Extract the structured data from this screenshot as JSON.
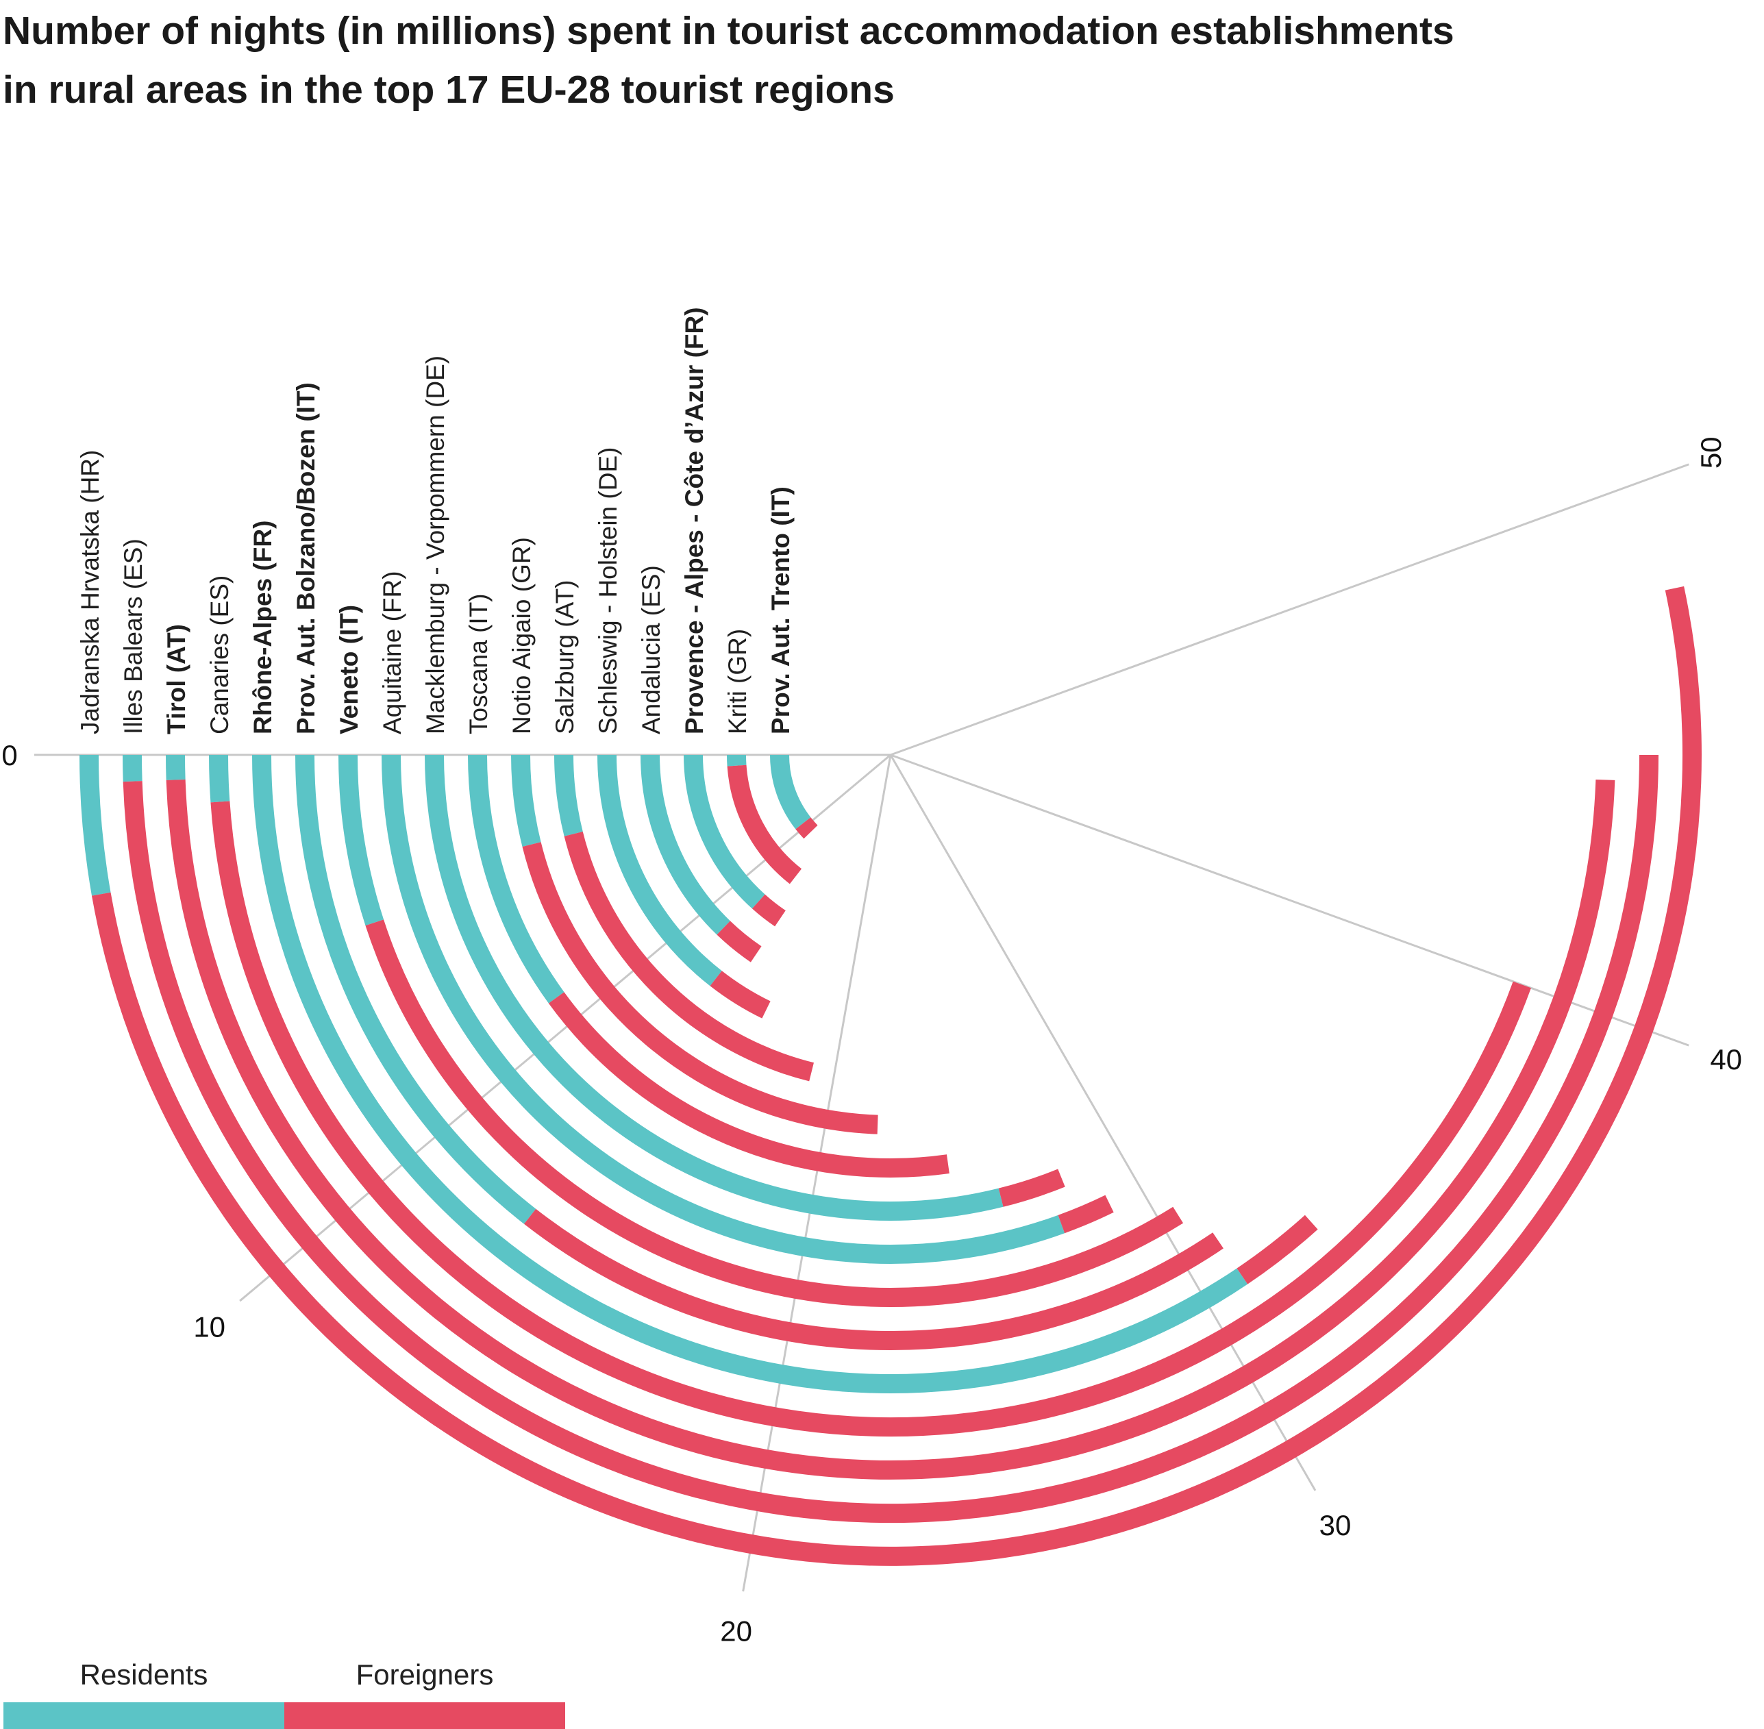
{
  "chart_data": {
    "type": "radial-bar",
    "title_lines": [
      "Number of nights (in millions) spent in tourist accommodation establishments",
      "in rural areas in the top 17 EU-28 tourist regions"
    ],
    "axis": {
      "min": 0,
      "max": 50,
      "ticks": [
        0,
        10,
        20,
        30,
        40,
        50
      ],
      "tick_labels": [
        "0",
        "10",
        "20",
        "30",
        "40",
        "50"
      ]
    },
    "legend": [
      {
        "name": "Residents",
        "color": "#5bc4c6"
      },
      {
        "name": "Foreigners",
        "color": "#e64a61"
      }
    ],
    "regions": [
      {
        "name": "Jadranska Hrvatska (HR)",
        "residents": 2.5,
        "foreigners": 45.5,
        "bold": false
      },
      {
        "name": "Illes Balears (ES)",
        "residents": 0.5,
        "foreigners": 44.5,
        "bold": false
      },
      {
        "name": "Tirol (AT)",
        "residents": 0.5,
        "foreigners": 44.0,
        "bold": true
      },
      {
        "name": "Canaries (ES)",
        "residents": 1.0,
        "foreigners": 39.0,
        "bold": false
      },
      {
        "name": "Rhône-Alpes (FR)",
        "residents": 31.0,
        "foreigners": 2.0,
        "bold": true
      },
      {
        "name": "Prov. Aut. Bolzano/Bozen (IT)",
        "residents": 13.0,
        "foreigners": 18.0,
        "bold": true
      },
      {
        "name": "Veneto (IT)",
        "residents": 4.5,
        "foreigners": 26.0,
        "bold": true
      },
      {
        "name": "Aquitaine (FR)",
        "residents": 27.5,
        "foreigners": 1.5,
        "bold": false
      },
      {
        "name": "Macklemburg - Vorpommern (DE)",
        "residents": 26.0,
        "foreigners": 2.0,
        "bold": false
      },
      {
        "name": "Toscana (IT)",
        "residents": 9.0,
        "foreigners": 15.5,
        "bold": false
      },
      {
        "name": "Notio Aigaio (GR)",
        "residents": 3.5,
        "foreigners": 18.5,
        "bold": false
      },
      {
        "name": "Salzburg (AT)",
        "residents": 3.5,
        "foreigners": 15.5,
        "bold": false
      },
      {
        "name": "Schleswig - Holstein (DE)",
        "residents": 13.0,
        "foreigners": 3.0,
        "bold": false
      },
      {
        "name": "Andalucia (ES)",
        "residents": 11.5,
        "foreigners": 2.5,
        "bold": false
      },
      {
        "name": "Provence - Alpes - Côte d’Azur (FR)",
        "residents": 12.0,
        "foreigners": 2.0,
        "bold": true
      },
      {
        "name": "Kriti (GR)",
        "residents": 1.0,
        "foreigners": 12.0,
        "bold": false
      },
      {
        "name": "Prov. Aut. Trento (IT)",
        "residents": 9.5,
        "foreigners": 1.5,
        "bold": true
      }
    ]
  }
}
